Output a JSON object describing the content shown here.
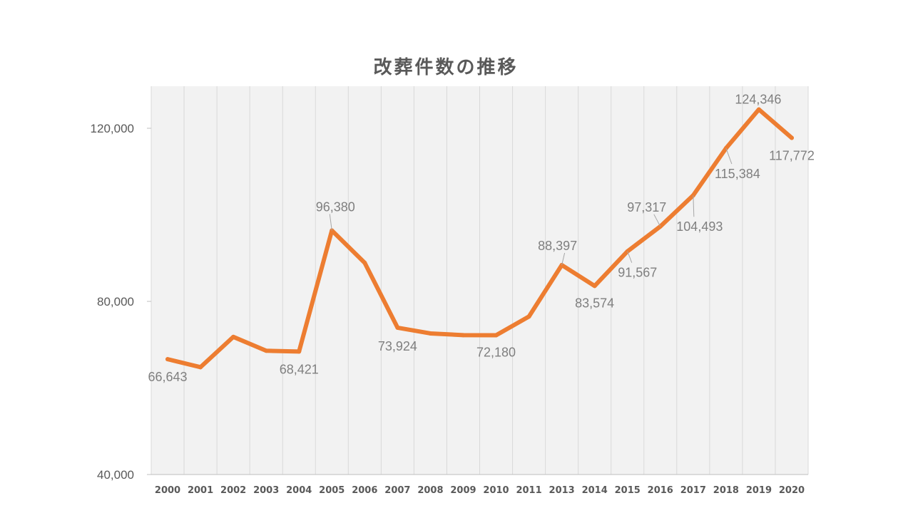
{
  "chart_data": {
    "type": "line",
    "title": "改葬件数の推移",
    "xlabel": "",
    "ylabel": "",
    "ylim": [
      40000,
      130000
    ],
    "yticks": [
      40000,
      80000,
      120000
    ],
    "ytick_labels": [
      "40,000",
      "80,000",
      "120,000"
    ],
    "grid": "vertical",
    "categories": [
      "2000",
      "2001",
      "2002",
      "2003",
      "2004",
      "2005",
      "2006",
      "2007",
      "2008",
      "2009",
      "2010",
      "2011",
      "2013",
      "2014",
      "2015",
      "2016",
      "2017",
      "2018",
      "2019",
      "2020"
    ],
    "series": [
      {
        "color": "#ED7D31",
        "values": [
          66643,
          64800,
          71800,
          68600,
          68421,
          96380,
          88900,
          73924,
          72600,
          72200,
          72180,
          76500,
          88397,
          83574,
          91567,
          97317,
          104493,
          115384,
          124346,
          117772
        ]
      }
    ],
    "data_labels": [
      {
        "index": 0,
        "text": "66,643"
      },
      {
        "index": 4,
        "text": "68,421"
      },
      {
        "index": 5,
        "text": "96,380"
      },
      {
        "index": 7,
        "text": "73,924"
      },
      {
        "index": 10,
        "text": "72,180"
      },
      {
        "index": 12,
        "text": "88,397"
      },
      {
        "index": 13,
        "text": "83,574"
      },
      {
        "index": 14,
        "text": "91,567"
      },
      {
        "index": 15,
        "text": "97,317"
      },
      {
        "index": 16,
        "text": "104,493"
      },
      {
        "index": 17,
        "text": "115,384"
      },
      {
        "index": 18,
        "text": "124,346"
      },
      {
        "index": 19,
        "text": "117,772"
      }
    ]
  }
}
